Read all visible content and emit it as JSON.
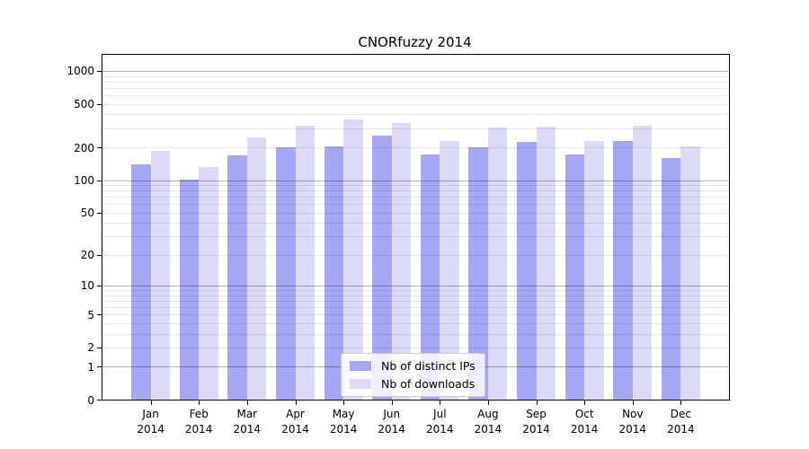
{
  "chart_data": {
    "type": "bar",
    "title": "CNORfuzzy 2014",
    "year": "2014",
    "months": [
      "Jan",
      "Feb",
      "Mar",
      "Apr",
      "May",
      "Jun",
      "Jul",
      "Aug",
      "Sep",
      "Oct",
      "Nov",
      "Dec"
    ],
    "series": [
      {
        "name": "Nb of distinct IPs",
        "color": "#a6a6f4",
        "values": [
          139,
          101,
          169,
          200,
          205,
          256,
          172,
          199,
          226,
          172,
          230,
          159
        ]
      },
      {
        "name": "Nb of downloads",
        "color": "#dbdbf8",
        "values": [
          185,
          132,
          246,
          315,
          362,
          331,
          230,
          304,
          310,
          228,
          317,
          204
        ]
      }
    ],
    "yscale": "log10(value+1)",
    "yticks": [
      0,
      1,
      2,
      5,
      10,
      20,
      50,
      100,
      200,
      500,
      1000
    ],
    "ylim": [
      0,
      1400
    ],
    "xlabel": "",
    "ylabel": "",
    "grid": "horizontal major (1,10,100,1000) dark + minor (2-9 per decade) light, drawn over bars",
    "legend_position": "lower center inside plot",
    "colors": {
      "major_grid": "#b3b3b3",
      "minor_grid": "#e6e6e6",
      "spine": "#000000",
      "background": "#ffffff"
    }
  }
}
